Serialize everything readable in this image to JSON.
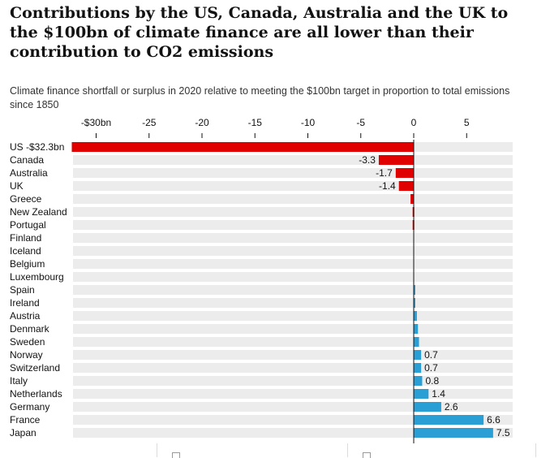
{
  "chart_data": {
    "type": "bar",
    "orientation": "horizontal",
    "title": "Contributions by the US, Canada, Australia and the UK to the $100bn of climate finance are all lower than their contribution to CO2 emissions",
    "subtitle": "Climate finance shortfall or surplus in 2020 relative to meeting the $100bn target in proportion to total emissions since 1850",
    "xlim": [
      -32.3,
      9.5
    ],
    "xticks": [
      {
        "value": -30,
        "label": "-$30bn"
      },
      {
        "value": -25,
        "label": "-25"
      },
      {
        "value": -20,
        "label": "-20"
      },
      {
        "value": -15,
        "label": "-15"
      },
      {
        "value": -10,
        "label": "-10"
      },
      {
        "value": -5,
        "label": "-5"
      },
      {
        "value": 0,
        "label": "0"
      },
      {
        "value": 5,
        "label": "5"
      }
    ],
    "categories": [
      "US",
      "Canada",
      "Australia",
      "UK",
      "Greece",
      "New Zealand",
      "Portugal",
      "Finland",
      "Iceland",
      "Belgium",
      "Luxembourg",
      "Spain",
      "Ireland",
      "Austria",
      "Denmark",
      "Sweden",
      "Norway",
      "Switzerland",
      "Italy",
      "Netherlands",
      "Germany",
      "France",
      "Japan"
    ],
    "values": [
      -32.3,
      -3.3,
      -1.7,
      -1.4,
      -0.3,
      -0.1,
      -0.1,
      0,
      0,
      0,
      0,
      0.1,
      0.1,
      0.3,
      0.4,
      0.5,
      0.7,
      0.7,
      0.8,
      1.4,
      2.6,
      6.6,
      7.5
    ],
    "data_labels": [
      "-$32.3bn",
      "-3.3",
      "-1.7",
      "-1.4",
      "",
      "",
      "",
      "",
      "",
      "",
      "",
      "",
      "",
      "",
      "",
      "",
      "0.7",
      "0.7",
      "0.8",
      "1.4",
      "2.6",
      "6.6",
      "7.5"
    ],
    "colors": {
      "negative": "#e00000",
      "positive": "#2a9fd6",
      "track": "#ececec",
      "zero_line": "#121212"
    }
  }
}
